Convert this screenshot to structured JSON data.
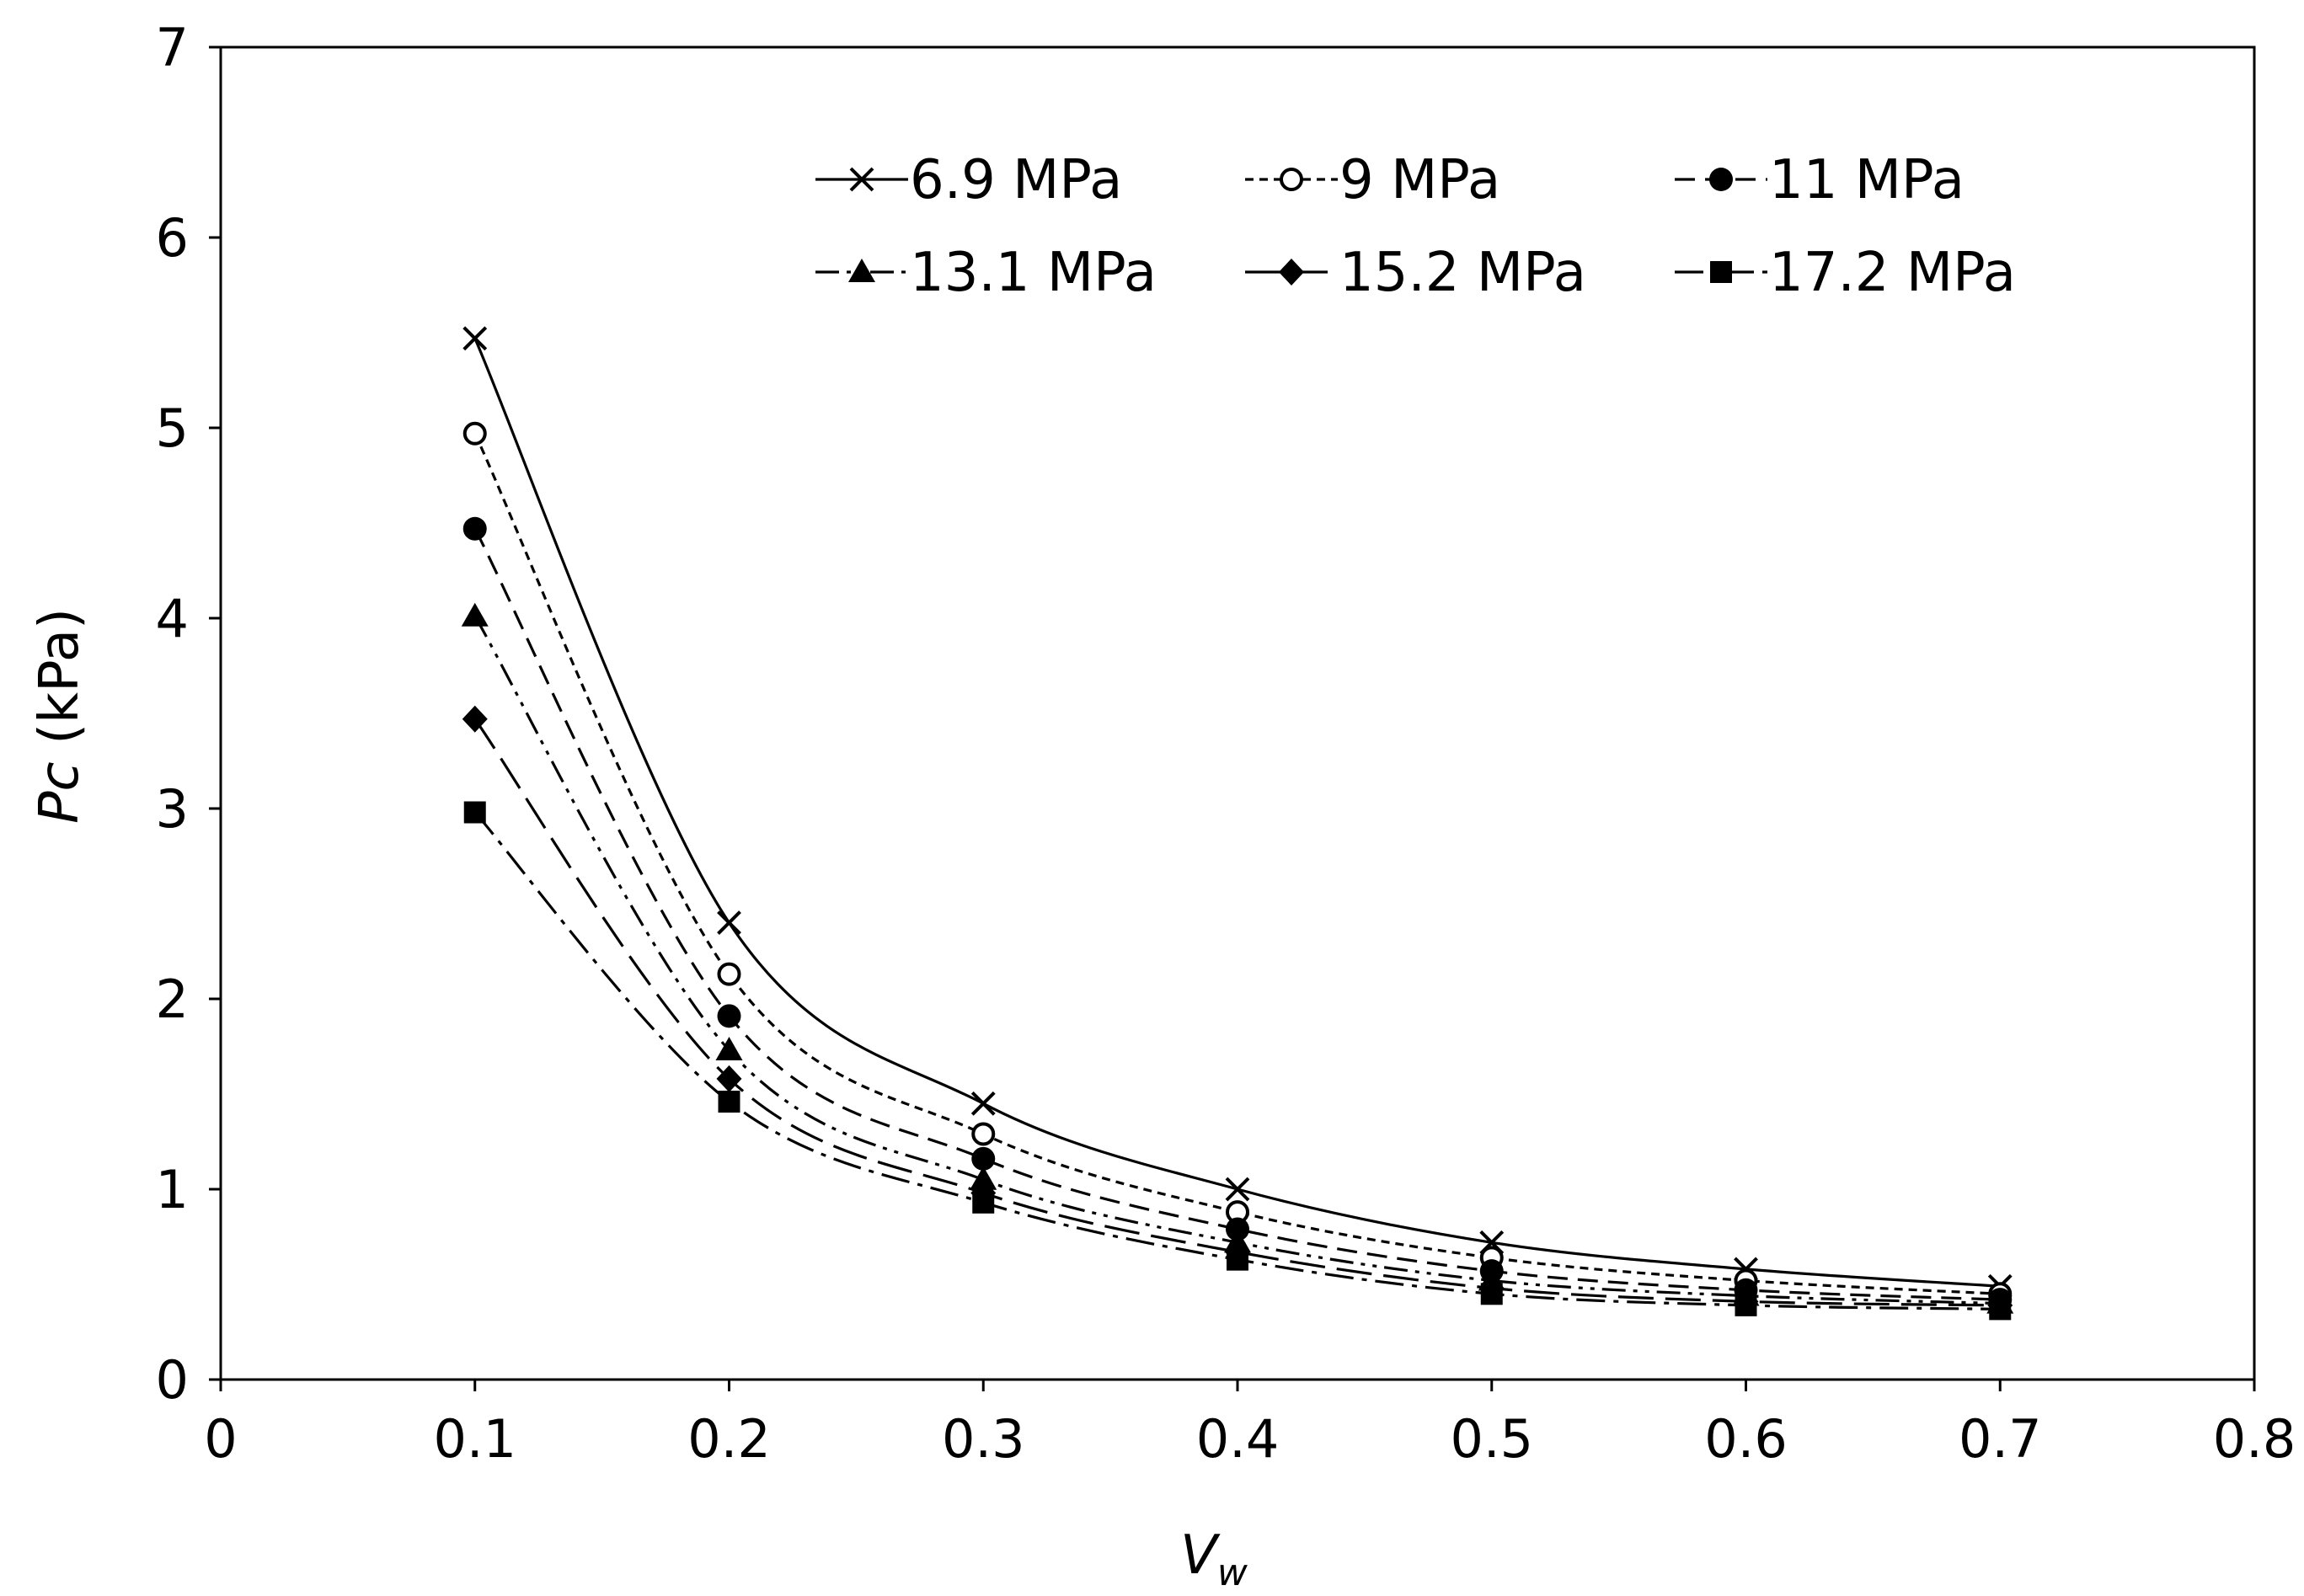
{
  "chart_data": {
    "type": "line",
    "title": "",
    "xlabel": "V",
    "xlabel_subscript": "w",
    "ylabel_italic": "Pc",
    "ylabel_rest": " (kPa)",
    "xlim": [
      0,
      0.8
    ],
    "ylim": [
      0,
      7
    ],
    "x_ticks": [
      0,
      0.1,
      0.2,
      0.3,
      0.4,
      0.5,
      0.6,
      0.7,
      0.8
    ],
    "x_tick_labels": [
      "0",
      "0.1",
      "0.2",
      "0.3",
      "0.4",
      "0.5",
      "0.6",
      "0.7",
      "0.8"
    ],
    "y_ticks": [
      0,
      1,
      2,
      3,
      4,
      5,
      6,
      7
    ],
    "y_tick_labels": [
      "0",
      "1",
      "2",
      "3",
      "4",
      "5",
      "6",
      "7"
    ],
    "grid": false,
    "legend_position": "top-right",
    "x": [
      0.1,
      0.2,
      0.3,
      0.4,
      0.5,
      0.6,
      0.7
    ],
    "series": [
      {
        "name": "6.9 MPa",
        "marker": "x",
        "dash": "solid",
        "values": [
          5.47,
          2.4,
          1.45,
          1.0,
          0.72,
          0.58,
          0.49
        ]
      },
      {
        "name": "9 MPa",
        "marker": "circle-open",
        "dash": "short-dash",
        "values": [
          4.97,
          2.13,
          1.29,
          0.88,
          0.64,
          0.52,
          0.45
        ]
      },
      {
        "name": "11 MPa",
        "marker": "circle",
        "dash": "dash",
        "values": [
          4.47,
          1.91,
          1.16,
          0.79,
          0.57,
          0.47,
          0.42
        ]
      },
      {
        "name": "13.1 MPa",
        "marker": "triangle",
        "dash": "dash-dot-dot",
        "values": [
          4.01,
          1.73,
          1.05,
          0.72,
          0.52,
          0.44,
          0.4
        ]
      },
      {
        "name": "15.2 MPa",
        "marker": "diamond",
        "dash": "long-dash",
        "values": [
          3.47,
          1.58,
          0.98,
          0.67,
          0.48,
          0.41,
          0.39
        ]
      },
      {
        "name": "17.2 MPa",
        "marker": "square",
        "dash": "dash-dot",
        "values": [
          2.98,
          1.46,
          0.93,
          0.63,
          0.45,
          0.39,
          0.37
        ]
      }
    ],
    "colors": {
      "line": "#000000",
      "background": "#ffffff"
    }
  }
}
